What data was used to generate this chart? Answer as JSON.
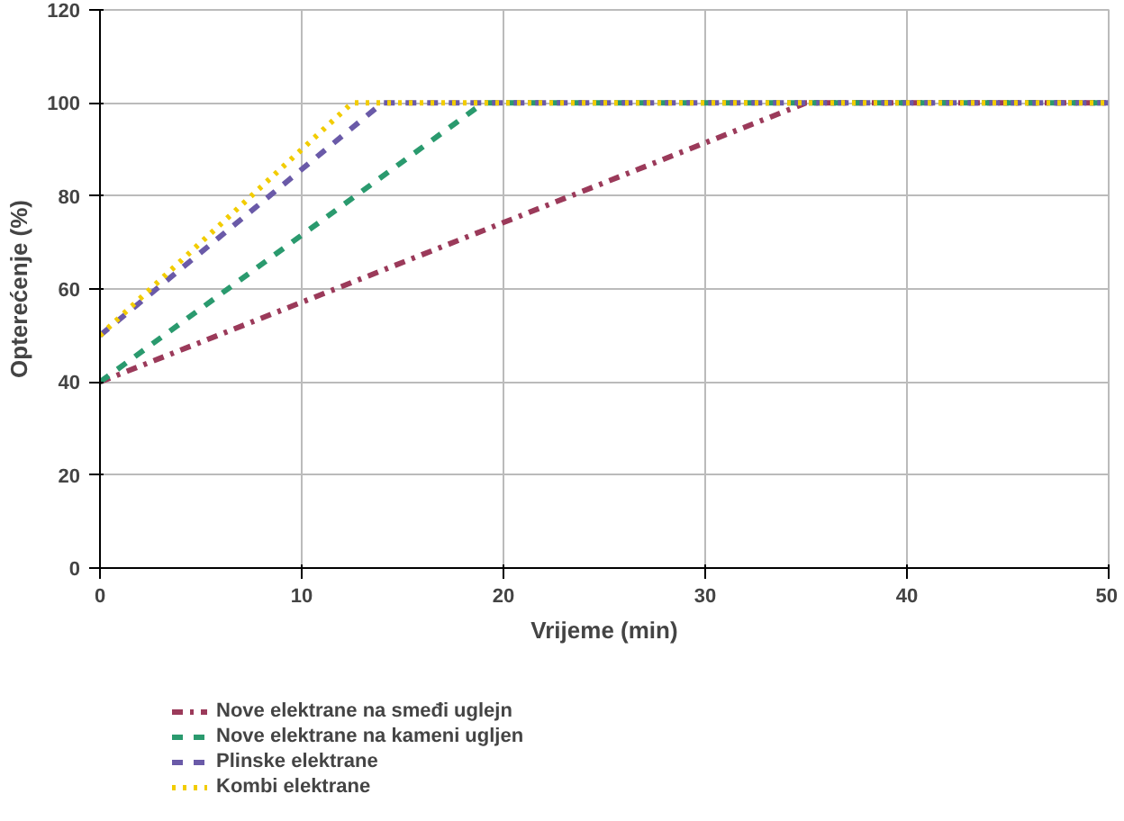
{
  "chart_data": {
    "type": "line",
    "xlabel": "Vrijeme (min)",
    "ylabel": "Opterećenje (%)",
    "xlim": [
      0,
      50
    ],
    "ylim": [
      0,
      120
    ],
    "xticks": [
      0,
      10,
      20,
      30,
      40,
      50
    ],
    "yticks": [
      0,
      20,
      40,
      60,
      80,
      100,
      120
    ],
    "grid": true,
    "legend": "bottom left",
    "marker": "none",
    "series": [
      {
        "name": "Nove elektrane na smeđi uglejn",
        "color": "#9b3a5a",
        "line_style": "dashdot",
        "x": [
          0,
          35,
          50
        ],
        "values": [
          40,
          100,
          100
        ]
      },
      {
        "name": "Nove elektrane na kameni ugljen",
        "color": "#2a9a6e",
        "line_style": "dashed",
        "x": [
          0,
          19,
          50
        ],
        "values": [
          40,
          100,
          100
        ]
      },
      {
        "name": "Plinske elektrane",
        "color": "#6a5aa8",
        "line_style": "dashed",
        "x": [
          0,
          14,
          50
        ],
        "values": [
          50,
          100,
          100
        ]
      },
      {
        "name": "Kombi elektrane",
        "color": "#f2cc00",
        "line_style": "dotted",
        "x": [
          0,
          12.5,
          50
        ],
        "values": [
          50,
          100,
          100
        ]
      }
    ]
  }
}
